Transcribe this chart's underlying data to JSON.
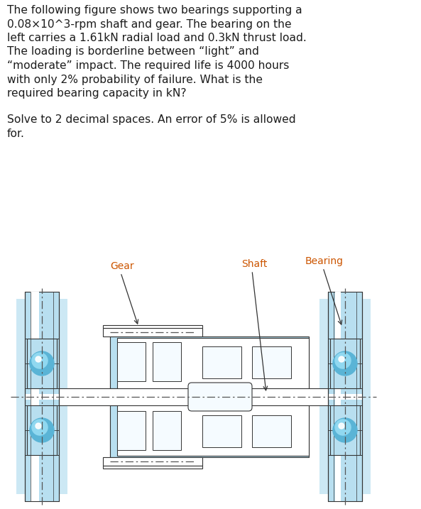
{
  "background_color": "#ffffff",
  "text_color": "#1c1c1c",
  "paragraph1_lines": [
    "The following figure shows two bearings supporting a",
    "0.08×10^3-rpm shaft and gear. The bearing on the",
    "left carries a 1.61kN radial load and 0.3kN thrust load.",
    "The loading is borderline between “light” and",
    "“moderate” impact. The required life is 4000 hours",
    "with only 2% probability of failure. What is the",
    "required bearing capacity in kN?"
  ],
  "paragraph2_lines": [
    "Solve to 2 decimal spaces. An error of 5% is allowed",
    "for."
  ],
  "label_gear": "Gear",
  "label_shaft": "Shaft",
  "label_bearing": "Bearing",
  "light_blue": "#b8dff0",
  "mid_blue": "#7ec8e3",
  "ball_blue_outer": "#5ab4d6",
  "ball_blue_inner": "#90d8f0",
  "dark_outline": "#333333",
  "centerline_color": "#555555",
  "label_color": "#cc5500",
  "white": "#ffffff",
  "near_white": "#f5fbff"
}
